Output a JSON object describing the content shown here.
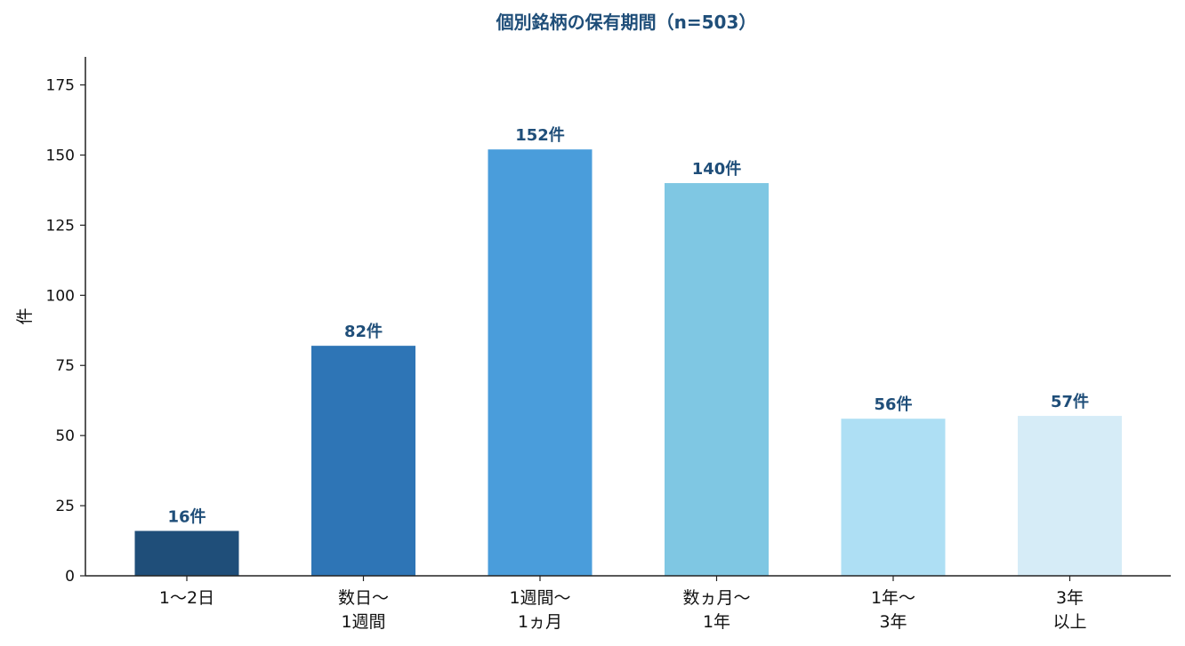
{
  "chart_data": {
    "type": "bar",
    "title": "個別銘柄の保有期間（n=503）",
    "ylabel": "件",
    "xlabel": "",
    "ylim": [
      0,
      185
    ],
    "yticks": [
      0,
      25,
      50,
      75,
      100,
      125,
      150,
      175
    ],
    "categories": [
      [
        "1〜2日"
      ],
      [
        "数日〜",
        "1週間"
      ],
      [
        "1週間〜",
        "1ヵ月"
      ],
      [
        "数ヵ月〜",
        "1年"
      ],
      [
        "1年〜",
        "3年"
      ],
      [
        "3年",
        "以上"
      ]
    ],
    "values": [
      16,
      82,
      152,
      140,
      56,
      57
    ],
    "data_labels": [
      "16件",
      "82件",
      "152件",
      "140件",
      "56件",
      "57件"
    ],
    "colors": [
      "#1f4e79",
      "#2e75b6",
      "#4a9ddb",
      "#7fc7e3",
      "#aedff4",
      "#d6ecf7"
    ],
    "title_color": "#1f4e79",
    "label_color": "#1f4e79",
    "grid": false,
    "legend": "none"
  }
}
